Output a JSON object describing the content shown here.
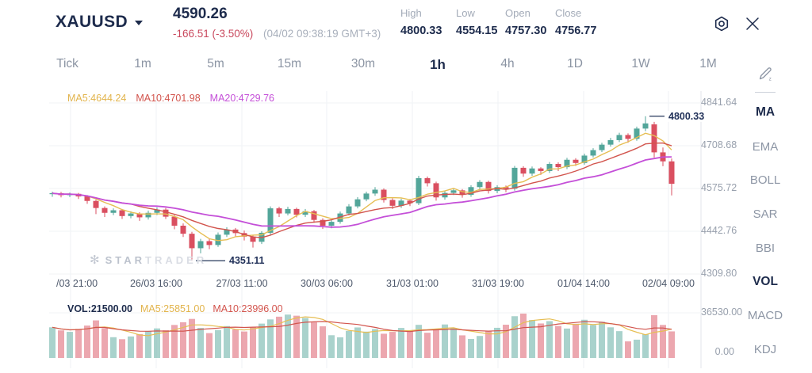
{
  "header": {
    "symbol": "XAUUSD",
    "price": "4590.26",
    "change": "-166.51 (-3.50%)",
    "timestamp": "(04/02 09:38:19 GMT+3)",
    "stats": [
      {
        "label": "High",
        "value": "4800.33"
      },
      {
        "label": "Low",
        "value": "4554.15"
      },
      {
        "label": "Open",
        "value": "4757.30"
      },
      {
        "label": "Close",
        "value": "4756.77"
      }
    ]
  },
  "timeframes": {
    "items": [
      "Tick",
      "1m",
      "5m",
      "15m",
      "30m",
      "1h",
      "4h",
      "1D",
      "1W",
      "1M"
    ],
    "active": "1h"
  },
  "sidebar": {
    "items": [
      {
        "label": "MA",
        "active": true
      },
      {
        "label": "EMA",
        "active": false
      },
      {
        "label": "BOLL",
        "active": false
      },
      {
        "label": "SAR",
        "active": false
      },
      {
        "label": "BBI",
        "active": false
      },
      {
        "label": "VOL",
        "active": true
      },
      {
        "label": "MACD",
        "active": false
      },
      {
        "label": "KDJ",
        "active": false
      }
    ]
  },
  "watermark": {
    "star": "STAR",
    "trader": "TRADER"
  },
  "chart_data": {
    "type": "candlestick",
    "symbol": "XAUUSD",
    "interval": "1h",
    "legend": {
      "ma5": "MA5:4644.24",
      "ma10": "MA10:4701.98",
      "ma20": "MA20:4729.76"
    },
    "volume_legend": {
      "vol": "VOL:21500.00",
      "ma5": "MA5:25851.00",
      "ma10": "MA10:23996.00"
    },
    "price_axis": [
      "4841.64",
      "4708.68",
      "4575.72",
      "4442.76",
      "4309.80"
    ],
    "price_axis_range": [
      4309.8,
      4841.64
    ],
    "time_axis": [
      "/03 21:00",
      "26/03 16:00",
      "27/03 11:00",
      "30/03 06:00",
      "31/03 01:00",
      "31/03 19:00",
      "01/04 14:00",
      "02/04 09:00"
    ],
    "volume_axis": [
      "36530.00",
      "0.00"
    ],
    "volume_max": 36530,
    "annotations": {
      "high": "4800.33",
      "low": "4351.11",
      "high_index": 68,
      "low_index": 16
    },
    "colors": {
      "up": "#53A69A",
      "down": "#DA4F60",
      "ma5": "#E6BE53",
      "ma10": "#D2544D",
      "ma20": "#C44FD8"
    },
    "ohlc_format": [
      "open",
      "high",
      "low",
      "close"
    ],
    "candles": [
      [
        4558,
        4566,
        4550,
        4561
      ],
      [
        4561,
        4565,
        4548,
        4555
      ],
      [
        4555,
        4563,
        4549,
        4559
      ],
      [
        4559,
        4562,
        4543,
        4551
      ],
      [
        4551,
        4555,
        4528,
        4537
      ],
      [
        4537,
        4541,
        4496,
        4515
      ],
      [
        4515,
        4520,
        4487,
        4500
      ],
      [
        4500,
        4514,
        4493,
        4508
      ],
      [
        4508,
        4512,
        4481,
        4490
      ],
      [
        4490,
        4505,
        4483,
        4498
      ],
      [
        4498,
        4502,
        4475,
        4486
      ],
      [
        4486,
        4507,
        4479,
        4500
      ],
      [
        4500,
        4517,
        4493,
        4510
      ],
      [
        4510,
        4515,
        4481,
        4488
      ],
      [
        4488,
        4493,
        4449,
        4460
      ],
      [
        4460,
        4467,
        4425,
        4435
      ],
      [
        4435,
        4441,
        4351.11,
        4390
      ],
      [
        4390,
        4419,
        4374,
        4412
      ],
      [
        4412,
        4421,
        4387,
        4400
      ],
      [
        4400,
        4439,
        4394,
        4432
      ],
      [
        4432,
        4455,
        4425,
        4448
      ],
      [
        4448,
        4453,
        4427,
        4437
      ],
      [
        4437,
        4445,
        4414,
        4426
      ],
      [
        4426,
        4431,
        4392,
        4410
      ],
      [
        4410,
        4443,
        4403,
        4438
      ],
      [
        4438,
        4520,
        4432,
        4514
      ],
      [
        4514,
        4519,
        4487,
        4498
      ],
      [
        4498,
        4519,
        4492,
        4512
      ],
      [
        4512,
        4516,
        4486,
        4494
      ],
      [
        4494,
        4512,
        4487,
        4505
      ],
      [
        4505,
        4509,
        4469,
        4478
      ],
      [
        4478,
        4483,
        4450,
        4460
      ],
      [
        4460,
        4479,
        4452,
        4472
      ],
      [
        4472,
        4504,
        4466,
        4498
      ],
      [
        4498,
        4527,
        4492,
        4520
      ],
      [
        4520,
        4549,
        4514,
        4542
      ],
      [
        4542,
        4566,
        4536,
        4560
      ],
      [
        4560,
        4580,
        4553,
        4572
      ],
      [
        4572,
        4576,
        4532,
        4540
      ],
      [
        4540,
        4545,
        4512,
        4522
      ],
      [
        4522,
        4544,
        4515,
        4538
      ],
      [
        4538,
        4543,
        4521,
        4530
      ],
      [
        4530,
        4615,
        4524,
        4608
      ],
      [
        4608,
        4613,
        4582,
        4592
      ],
      [
        4592,
        4597,
        4538,
        4548
      ],
      [
        4548,
        4568,
        4541,
        4562
      ],
      [
        4562,
        4576,
        4555,
        4570
      ],
      [
        4570,
        4574,
        4547,
        4556
      ],
      [
        4556,
        4586,
        4550,
        4580
      ],
      [
        4580,
        4602,
        4574,
        4596
      ],
      [
        4596,
        4600,
        4560,
        4568
      ],
      [
        4568,
        4586,
        4561,
        4580
      ],
      [
        4580,
        4585,
        4564,
        4575
      ],
      [
        4575,
        4646,
        4569,
        4640
      ],
      [
        4640,
        4645,
        4612,
        4622
      ],
      [
        4622,
        4644,
        4615,
        4638
      ],
      [
        4638,
        4642,
        4618,
        4630
      ],
      [
        4630,
        4658,
        4624,
        4652
      ],
      [
        4652,
        4657,
        4630,
        4642
      ],
      [
        4642,
        4671,
        4636,
        4665
      ],
      [
        4665,
        4670,
        4646,
        4655
      ],
      [
        4655,
        4684,
        4650,
        4678
      ],
      [
        4678,
        4701,
        4672,
        4695
      ],
      [
        4695,
        4718,
        4689,
        4712
      ],
      [
        4712,
        4733,
        4706,
        4726
      ],
      [
        4726,
        4749,
        4720,
        4742
      ],
      [
        4742,
        4747,
        4718,
        4730
      ],
      [
        4730,
        4768,
        4724,
        4762
      ],
      [
        4762,
        4800.33,
        4754,
        4778
      ],
      [
        4775,
        4783,
        4672,
        4688
      ],
      [
        4688,
        4703,
        4645,
        4660
      ],
      [
        4660,
        4669,
        4554.15,
        4590.26
      ]
    ],
    "volumes": [
      24800,
      22300,
      21100,
      23600,
      26200,
      30400,
      24100,
      16800,
      15200,
      17400,
      19300,
      21800,
      23900,
      22400,
      26700,
      28900,
      31600,
      24300,
      20100,
      22600,
      25800,
      23100,
      21400,
      24900,
      27800,
      31200,
      33400,
      35100,
      34200,
      32300,
      28800,
      25600,
      18400,
      16700,
      21900,
      24700,
      21300,
      23400,
      19600,
      21100,
      24300,
      22100,
      26800,
      20400,
      23700,
      27100,
      24200,
      18300,
      15400,
      17800,
      21600,
      24400,
      26900,
      33800,
      35900,
      30700,
      27900,
      29800,
      25900,
      23800,
      27700,
      30900,
      26600,
      29300,
      24800,
      21700,
      13400,
      14800,
      19200,
      34600,
      26700,
      21500
    ]
  }
}
